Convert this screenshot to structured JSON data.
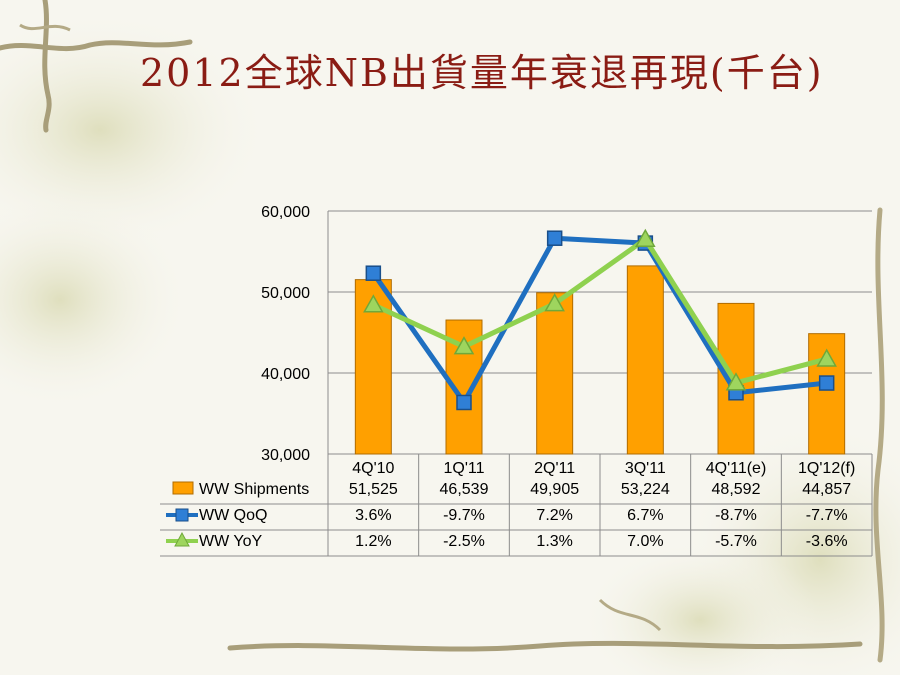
{
  "slide": {
    "title": "2012全球NB出貨量年衰退再現(千台)"
  },
  "chart_data": {
    "type": "bar",
    "categories": [
      "4Q'10",
      "1Q'11",
      "2Q'11",
      "3Q'11",
      "4Q'11(e)",
      "1Q'12(f)"
    ],
    "ylim": [
      30000,
      60000
    ],
    "yticks": [
      30000,
      40000,
      50000,
      60000
    ],
    "ytick_labels": [
      "30,000",
      "40,000",
      "50,000",
      "60,000"
    ],
    "grid": true,
    "legend": "data-table-below",
    "bar_series": {
      "name": "WW Shipments",
      "values": [
        51525,
        46539,
        49905,
        53224,
        48592,
        44857
      ],
      "labels": [
        "51,525",
        "46,539",
        "49,905",
        "53,224",
        "48,592",
        "44,857"
      ],
      "color": "#ffa000"
    },
    "line_series": [
      {
        "name": "WW QoQ",
        "values": [
          3.6,
          -9.7,
          7.2,
          6.7,
          -8.7,
          -7.7
        ],
        "labels": [
          "3.6%",
          "-9.7%",
          "7.2%",
          "6.7%",
          "-8.7%",
          "-7.7%"
        ],
        "color": "#1f6fc0",
        "marker": "square",
        "secondary_ylim": [
          -15,
          10
        ]
      },
      {
        "name": "WW YoY",
        "values": [
          1.2,
          -2.5,
          1.3,
          7.0,
          -5.7,
          -3.6
        ],
        "labels": [
          "1.2%",
          "-2.5%",
          "1.3%",
          "7.0%",
          "-5.7%",
          "-3.6%"
        ],
        "color": "#8fd14f",
        "marker": "triangle",
        "secondary_ylim": [
          -12,
          9.5
        ]
      }
    ]
  }
}
